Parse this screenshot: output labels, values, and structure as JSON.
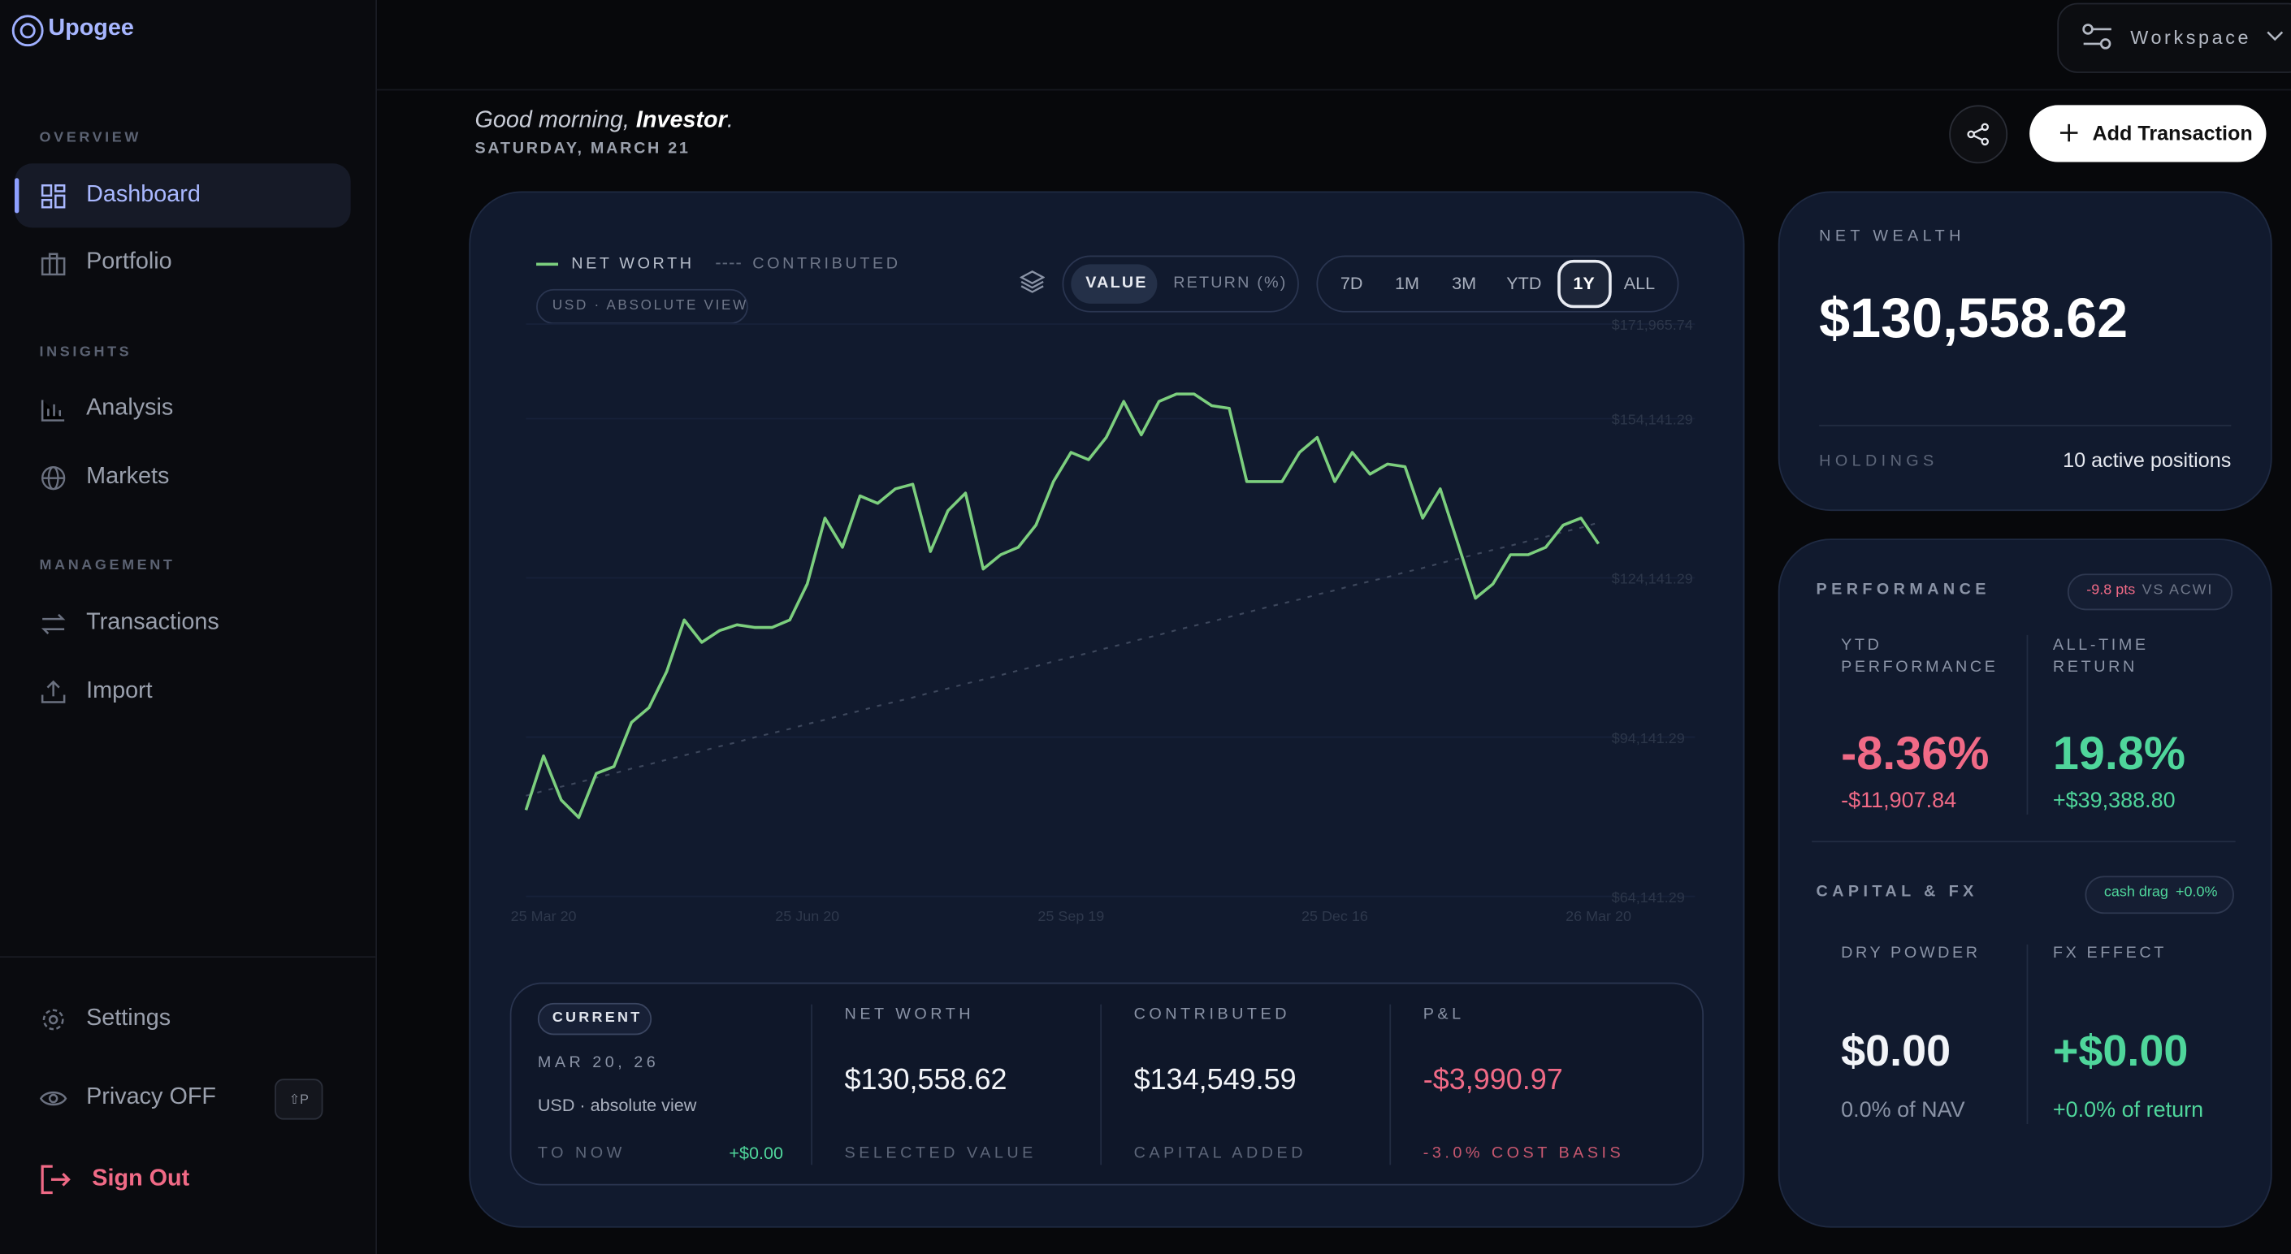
{
  "sidebar": {
    "brand": "Upogee",
    "sections": [
      {
        "title": "OVERVIEW",
        "items": [
          "Dashboard",
          "Portfolio"
        ]
      },
      {
        "title": "INSIGHTS",
        "items": [
          "Analysis",
          "Markets"
        ]
      },
      {
        "title": "MANAGEMENT",
        "items": [
          "Transactions",
          "Import"
        ]
      }
    ],
    "settings": "Settings",
    "privacy": "Privacy OFF",
    "privacy_shortcut": "⇧P",
    "sign_out": "Sign Out"
  },
  "header": {
    "workspace": "Workspace",
    "greeting": "Good morning,",
    "name": "Investor",
    "greeting_end": ".",
    "date": "SATURDAY, MARCH 21",
    "add_button": "Add Transaction"
  },
  "chart_controls": {
    "view_chip": "USD · ABSOLUTE VIEW",
    "modes": [
      "VALUE",
      "RETURN (%)"
    ],
    "ranges": [
      "7D",
      "1M",
      "3M",
      "YTD",
      "1Y",
      "ALL"
    ]
  },
  "chart_data": {
    "type": "line",
    "x": [
      0,
      6,
      12,
      18,
      24,
      30,
      36,
      42,
      48,
      54,
      60,
      66,
      72,
      78,
      84,
      90,
      96,
      102,
      108,
      114,
      120,
      126,
      132,
      138,
      144,
      150,
      156,
      162,
      168,
      174,
      180,
      186,
      192,
      198,
      204,
      210,
      216,
      222,
      228,
      234,
      240,
      246,
      252,
      258,
      264,
      270,
      276,
      282,
      288,
      294,
      300,
      306,
      312,
      318,
      324,
      330,
      336,
      342,
      348,
      354,
      360,
      366
    ],
    "xlim": [
      0,
      366
    ],
    "xticks": [
      {
        "value": 6,
        "label": "25 Mar 20"
      },
      {
        "value": 96,
        "label": "25 Jun 20"
      },
      {
        "value": 186,
        "label": "25 Sep 19"
      },
      {
        "value": 276,
        "label": "25 Dec 16"
      },
      {
        "value": 366,
        "label": "26 Mar 20"
      }
    ],
    "ylim": [
      64141.29,
      171965.74
    ],
    "yticks": [
      {
        "value": 64141.29,
        "label": "$64,141.29"
      },
      {
        "value": 94141.29,
        "label": "$94,141.29"
      },
      {
        "value": 124141.29,
        "label": "$124,141.29"
      },
      {
        "value": 154141.29,
        "label": "$154,141.29"
      },
      {
        "value": 171965.74,
        "label": "$171,965.74"
      }
    ],
    "grid": true,
    "series": [
      {
        "name": "NET WORTH",
        "color": "#7ccf7e",
        "dashed": false,
        "values": [
          80400,
          90600,
          82300,
          79000,
          87300,
          88600,
          96900,
          99700,
          106500,
          116200,
          112000,
          114200,
          115300,
          114800,
          114800,
          116200,
          123000,
          135400,
          129900,
          139600,
          138200,
          140900,
          141800,
          129100,
          136800,
          140100,
          125800,
          128500,
          129900,
          134100,
          142300,
          147800,
          146400,
          150600,
          157400,
          151100,
          157400,
          158800,
          158800,
          156600,
          156100,
          142300,
          142300,
          142300,
          147800,
          150600,
          142300,
          147800,
          143700,
          145600,
          145100,
          135400,
          140900,
          130700,
          120300,
          123000,
          128500,
          128500,
          129900,
          134100,
          135400,
          130558.62
        ]
      },
      {
        "name": "CONTRIBUTED",
        "color": "#3d475c",
        "dashed": true,
        "values": [
          83100,
          84000,
          84800,
          85600,
          86500,
          87300,
          88200,
          89000,
          89900,
          90700,
          91500,
          92400,
          93200,
          94100,
          94900,
          95700,
          96600,
          97400,
          98300,
          99100,
          100000,
          100800,
          101600,
          102500,
          103300,
          104200,
          105000,
          105800,
          106700,
          107500,
          108400,
          109200,
          110000,
          110900,
          111700,
          112600,
          113400,
          114300,
          115100,
          115900,
          116800,
          117600,
          118500,
          119300,
          120100,
          121000,
          121800,
          122700,
          123500,
          124300,
          125200,
          126000,
          126900,
          127700,
          128600,
          129400,
          130200,
          131100,
          131900,
          132800,
          133600,
          134549.59
        ]
      }
    ]
  },
  "summary": {
    "chip": "CURRENT",
    "date": "MAR 20, 26",
    "view": "USD · absolute view",
    "to_now_label": "TO NOW",
    "to_now_value": "+$0.00",
    "cells": [
      {
        "title": "NET WORTH",
        "value": "$130,558.62",
        "note": "SELECTED VALUE"
      },
      {
        "title": "CONTRIBUTED",
        "value": "$134,549.59",
        "note": "CAPITAL ADDED"
      },
      {
        "title": "P&L",
        "value": "-$3,990.97",
        "note": "-3.0% COST BASIS"
      }
    ]
  },
  "wealth": {
    "title": "NET WEALTH",
    "value": "$130,558.62",
    "holdings_label": "HOLDINGS",
    "holdings_value": "10 active positions"
  },
  "performance": {
    "title": "PERFORMANCE",
    "chip_value": "-9.8 pts",
    "chip_label": "VS ACWI",
    "ytd_label": "YTD PERFORMANCE",
    "ytd_value": "-8.36%",
    "ytd_amount": "-$11,907.84",
    "alltime_label": "ALL-TIME RETURN",
    "alltime_value": "19.8%",
    "alltime_amount": "+$39,388.80",
    "fx_title": "CAPITAL & FX",
    "fx_chip_label": "cash drag",
    "fx_chip_value": "+0.0%",
    "dry_label": "DRY POWDER",
    "dry_value": "$0.00",
    "dry_note": "0.0% of NAV",
    "fx_label": "FX EFFECT",
    "fx_value": "+$0.00",
    "fx_note": "+0.0% of return"
  }
}
